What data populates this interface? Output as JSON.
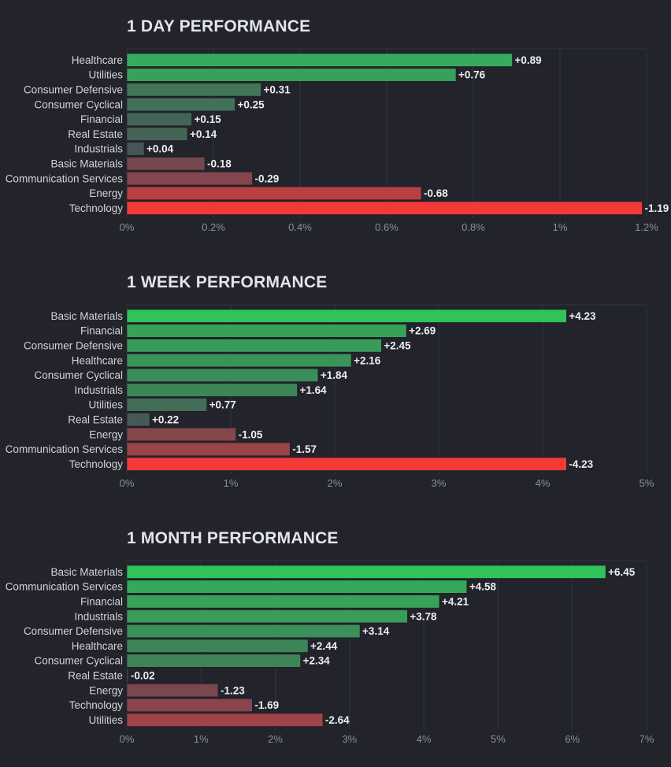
{
  "colors": {
    "background": "#22232b",
    "grid": "#33353e",
    "positive_strong": "#30c35c",
    "negative_strong": "#f23a3a",
    "neutral": "#4a4c55"
  },
  "chart_data": [
    {
      "type": "bar",
      "orientation": "horizontal",
      "title": "1 DAY PERFORMANCE",
      "categories": [
        "Healthcare",
        "Utilities",
        "Consumer Defensive",
        "Consumer Cyclical",
        "Financial",
        "Real Estate",
        "Industrials",
        "Basic Materials",
        "Communication Services",
        "Energy",
        "Technology"
      ],
      "values": [
        0.89,
        0.76,
        0.31,
        0.25,
        0.15,
        0.14,
        0.04,
        -0.18,
        -0.29,
        -0.68,
        -1.19
      ],
      "value_labels": [
        "+0.89",
        "+0.76",
        "+0.31",
        "+0.25",
        "+0.15",
        "+0.14",
        "+0.04",
        "-0.18",
        "-0.29",
        "-0.68",
        "-1.19"
      ],
      "axis_max": 1.2,
      "ticks": [
        "0%",
        "0.2%",
        "0.4%",
        "0.6%",
        "0.8%",
        "1%",
        "1.2%"
      ],
      "grid": true
    },
    {
      "type": "bar",
      "orientation": "horizontal",
      "title": "1 WEEK PERFORMANCE",
      "categories": [
        "Basic Materials",
        "Financial",
        "Consumer Defensive",
        "Healthcare",
        "Consumer Cyclical",
        "Industrials",
        "Utilities",
        "Real Estate",
        "Energy",
        "Communication Services",
        "Technology"
      ],
      "values": [
        4.23,
        2.69,
        2.45,
        2.16,
        1.84,
        1.64,
        0.77,
        0.22,
        -1.05,
        -1.57,
        -4.23
      ],
      "value_labels": [
        "+4.23",
        "+2.69",
        "+2.45",
        "+2.16",
        "+1.84",
        "+1.64",
        "+0.77",
        "+0.22",
        "-1.05",
        "-1.57",
        "-4.23"
      ],
      "axis_max": 5,
      "ticks": [
        "0%",
        "1%",
        "2%",
        "3%",
        "4%",
        "5%"
      ],
      "grid": true
    },
    {
      "type": "bar",
      "orientation": "horizontal",
      "title": "1 MONTH PERFORMANCE",
      "categories": [
        "Basic Materials",
        "Communication Services",
        "Financial",
        "Industrials",
        "Consumer Defensive",
        "Healthcare",
        "Consumer Cyclical",
        "Real Estate",
        "Energy",
        "Technology",
        "Utilities"
      ],
      "values": [
        6.45,
        4.58,
        4.21,
        3.78,
        3.14,
        2.44,
        2.34,
        -0.02,
        -1.23,
        -1.69,
        -2.64
      ],
      "value_labels": [
        "+6.45",
        "+4.58",
        "+4.21",
        "+3.78",
        "+3.14",
        "+2.44",
        "+2.34",
        "-0.02",
        "-1.23",
        "-1.69",
        "-2.64"
      ],
      "axis_max": 7,
      "ticks": [
        "0%",
        "1%",
        "2%",
        "3%",
        "4%",
        "5%",
        "6%",
        "7%"
      ],
      "grid": true
    }
  ]
}
